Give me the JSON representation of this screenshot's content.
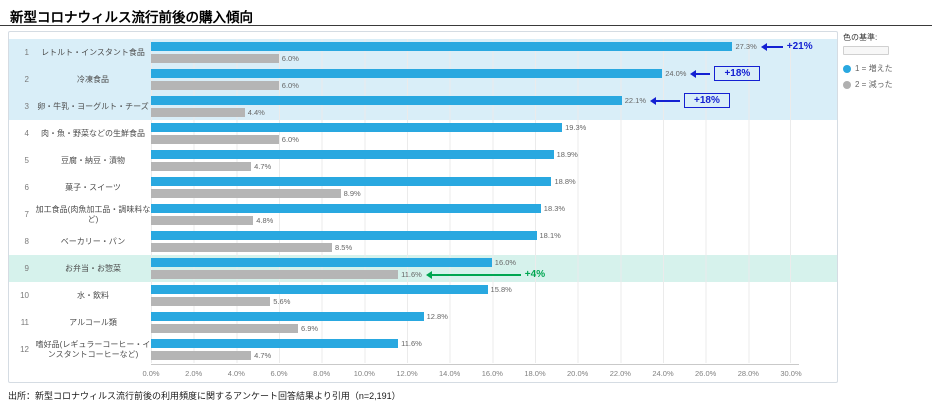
{
  "page": {
    "title": "新型コロナウィルス流行前後の購入傾向",
    "footer": "出所：新型コロナウィルス流行前後の利用頻度に関するアンケート回答結果より引用（n=2,191）"
  },
  "legend": {
    "title": "色の基準:",
    "items": [
      {
        "label": "1 = 増えた",
        "color": "#29a8e0"
      },
      {
        "label": "2 = 減った",
        "color": "#b0b0b0"
      }
    ]
  },
  "chart_data": {
    "type": "bar",
    "orientation": "horizontal",
    "title": "新型コロナウィルス流行前後の購入傾向",
    "xlabel": "",
    "ylabel": "",
    "x_axis": {
      "min": 0,
      "max": 30,
      "tick_step": 2,
      "unit": "%"
    },
    "grid": true,
    "legend_position": "right",
    "series": [
      {
        "name": "増えた",
        "color": "#29a8e0"
      },
      {
        "name": "減った",
        "color": "#b5b5b5"
      }
    ],
    "rows": [
      {
        "rank": "1",
        "label": "レトルト・インスタント食品",
        "increase": 27.3,
        "decrease": 6.0,
        "highlight": "blue",
        "annotation": {
          "text": "+21%",
          "color": "blue",
          "boxed": false,
          "tail": 22,
          "on": "increase"
        }
      },
      {
        "rank": "2",
        "label": "冷凍食品",
        "increase": 24.0,
        "decrease": 6.0,
        "highlight": "blue",
        "annotation": {
          "text": "+18%",
          "color": "blue",
          "boxed": true,
          "tail": 20,
          "on": "increase"
        }
      },
      {
        "rank": "3",
        "label": "卵・牛乳・ヨーグルト・チーズ",
        "increase": 22.1,
        "decrease": 4.4,
        "highlight": "blue",
        "annotation": {
          "text": "+18%",
          "color": "blue",
          "boxed": true,
          "tail": 30,
          "on": "increase"
        }
      },
      {
        "rank": "4",
        "label": "肉・魚・野菜などの生鮮食品",
        "increase": 19.3,
        "decrease": 6.0
      },
      {
        "rank": "5",
        "label": "豆腐・納豆・漬物",
        "increase": 18.9,
        "decrease": 4.7
      },
      {
        "rank": "6",
        "label": "菓子・スイーツ",
        "increase": 18.8,
        "decrease": 8.9
      },
      {
        "rank": "7",
        "label": "加工食品(肉魚加工品・調味料など)",
        "increase": 18.3,
        "decrease": 4.8
      },
      {
        "rank": "8",
        "label": "ベーカリー・パン",
        "increase": 18.1,
        "decrease": 8.5
      },
      {
        "rank": "9",
        "label": "お弁当・お惣菜",
        "increase": 16.0,
        "decrease": 11.6,
        "highlight": "teal",
        "annotation": {
          "text": "+4%",
          "color": "green",
          "boxed": false,
          "tail": 95,
          "on": "decrease"
        }
      },
      {
        "rank": "10",
        "label": "水・飲料",
        "increase": 15.8,
        "decrease": 5.6
      },
      {
        "rank": "11",
        "label": "アルコール類",
        "increase": 12.8,
        "decrease": 6.9
      },
      {
        "rank": "12",
        "label": "嗜好品(レギュラーコーヒー・インスタントコーヒーなど)",
        "increase": 11.6,
        "decrease": 4.7
      }
    ]
  }
}
